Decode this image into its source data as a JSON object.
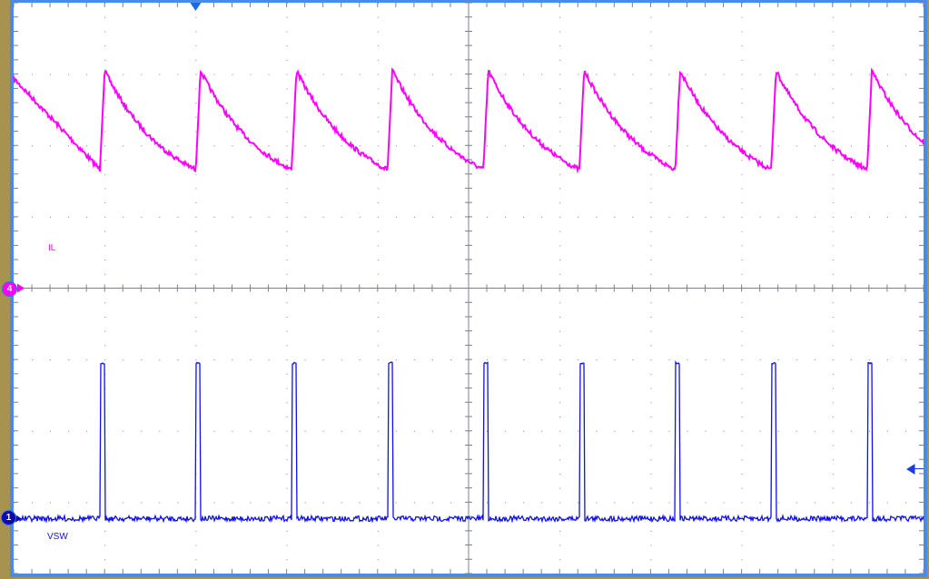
{
  "chart_data": {
    "type": "line",
    "title": "",
    "xlabel": "",
    "ylabel": "",
    "grid": true,
    "x_divisions": 10,
    "y_divisions": 8,
    "xlim": [
      0,
      10
    ],
    "ylim": [
      -4,
      4
    ],
    "units": "divisions",
    "trigger_position_div": 2.0,
    "series": [
      {
        "name": "IL",
        "channel": "4",
        "color": "#ff00ff",
        "waveform": "sawtooth",
        "period_div": 1.054,
        "first_peak_div": 1.0,
        "peak_div": 3.05,
        "valley_div": 1.66,
        "start_value_div": 2.94,
        "ground_level_div": 0.0
      },
      {
        "name": "VSW",
        "channel": "1",
        "color": "#1010ee",
        "waveform": "pulse",
        "period_div": 1.054,
        "first_pulse_div": 0.95,
        "pulse_width_div": 0.05,
        "high_div": -1.05,
        "low_div": -3.23,
        "ground_level_div": -3.23,
        "pulse_count": 9
      }
    ]
  },
  "markers": {
    "ch4_badge": "4",
    "ch1_badge": "1"
  },
  "colors": {
    "background": "#ffffff",
    "frame": "#4a8ae8",
    "bezel": "#a8924f",
    "grid": "#7a8090"
  }
}
